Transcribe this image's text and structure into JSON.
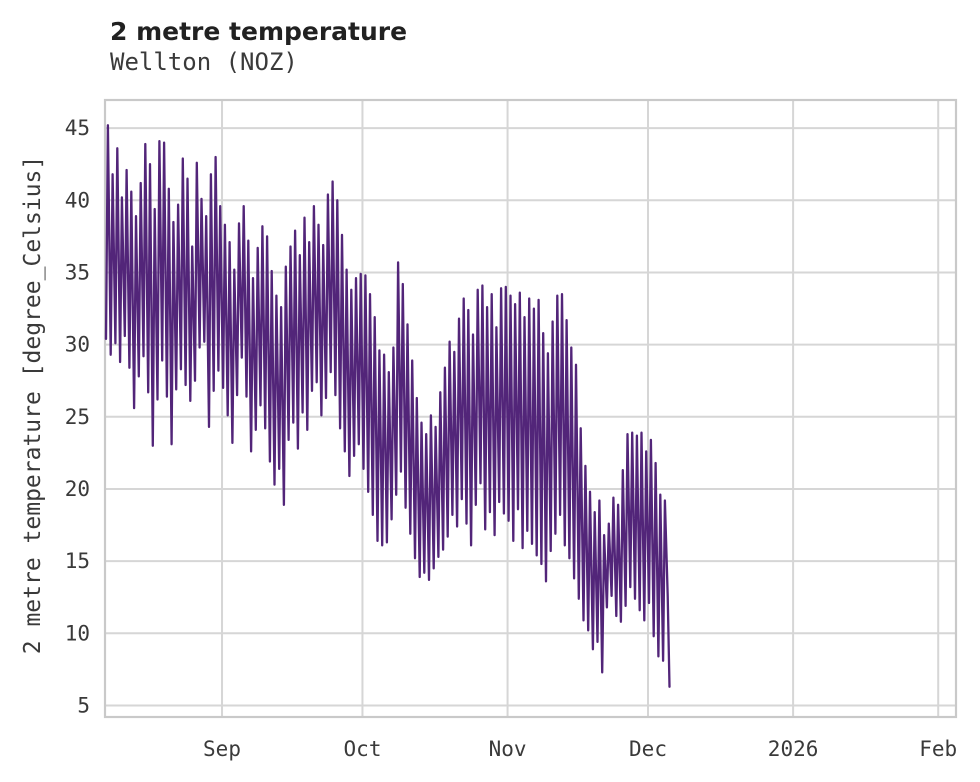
{
  "header": {
    "title": "2 metre temperature",
    "subtitle": "Wellton (NOZ)"
  },
  "colors": {
    "background": "#ffffff",
    "line": "#522579",
    "grid": "#d6d6d6",
    "spine": "#c9c9c9",
    "tick_text": "#3a3a3a",
    "title_text": "#212121"
  },
  "chart_data": {
    "type": "line",
    "title": "2 metre temperature",
    "subtitle": "Wellton (NOZ)",
    "xlabel": "",
    "ylabel": "2 metre temperature [degree_Celsius]",
    "series_name": "2 metre temperature",
    "legend_position": "none",
    "grid": true,
    "line_color": "#522579",
    "ylim": [
      4.2,
      46.95
    ],
    "y_ticks": [
      5,
      10,
      15,
      20,
      25,
      30,
      35,
      40,
      45
    ],
    "xlim_days": [
      0,
      181.8
    ],
    "x_ticks": [
      {
        "day": 25,
        "label": "Sep"
      },
      {
        "day": 55,
        "label": "Oct"
      },
      {
        "day": 86,
        "label": "Nov"
      },
      {
        "day": 116,
        "label": "Dec"
      },
      {
        "day": 147,
        "label": "2026"
      },
      {
        "day": 178,
        "label": "Feb"
      }
    ],
    "daily_max": [
      45.2,
      41.8,
      43.6,
      40.2,
      42.1,
      40.6,
      38.9,
      41.2,
      43.9,
      42.5,
      39.4,
      44.1,
      44.0,
      40.8,
      38.5,
      39.7,
      42.9,
      41.5,
      36.8,
      42.6,
      40.1,
      38.9,
      41.8,
      43.0,
      39.6,
      38.3,
      37.1,
      35.2,
      38.4,
      39.6,
      37.2,
      34.6,
      36.7,
      38.2,
      37.5,
      35.1,
      33.4,
      32.6,
      35.4,
      36.8,
      37.9,
      36.2,
      38.8,
      37.1,
      39.6,
      38.3,
      36.9,
      40.4,
      41.3,
      40.0,
      37.6,
      35.2,
      33.8,
      34.6,
      34.9,
      34.8,
      33.5,
      31.9,
      29.6,
      29.3,
      28.1,
      29.8,
      35.7,
      34.2,
      31.4,
      28.9,
      26.3,
      24.6,
      23.8,
      25.1,
      24.3,
      26.7,
      28.4,
      30.2,
      29.5,
      31.8,
      33.2,
      32.4,
      30.7,
      33.8,
      34.1,
      32.6,
      33.5,
      31.2,
      33.9,
      34.0,
      33.4,
      32.8,
      33.6,
      31.9,
      33.2,
      32.5,
      33.1,
      30.8,
      29.4,
      31.6,
      33.4,
      33.5,
      31.7,
      29.8,
      28.6,
      24.2,
      21.6,
      19.8,
      18.4,
      19.2,
      16.8,
      17.6,
      19.4,
      18.9,
      21.3,
      23.8,
      23.9,
      23.7,
      23.9,
      22.6,
      23.4,
      21.8,
      19.6,
      19.2,
      12.6
    ],
    "daily_min": [
      30.4,
      29.3,
      30.1,
      28.8,
      30.6,
      28.4,
      25.6,
      27.8,
      29.2,
      26.7,
      23.0,
      26.2,
      28.9,
      26.4,
      23.1,
      26.9,
      28.3,
      27.2,
      26.1,
      27.5,
      29.8,
      30.2,
      24.3,
      26.8,
      28.2,
      27.0,
      25.1,
      23.2,
      26.5,
      29.1,
      26.4,
      22.6,
      24.1,
      25.8,
      24.2,
      21.9,
      20.3,
      21.4,
      18.9,
      23.4,
      24.6,
      22.8,
      25.3,
      24.1,
      26.8,
      27.4,
      25.1,
      26.3,
      28.1,
      26.5,
      24.2,
      22.6,
      20.9,
      22.3,
      23.1,
      21.4,
      19.8,
      18.2,
      16.4,
      16.1,
      16.3,
      17.9,
      19.6,
      21.2,
      18.7,
      16.9,
      15.2,
      13.9,
      14.2,
      13.7,
      14.5,
      15.3,
      15.8,
      16.7,
      18.2,
      17.4,
      19.3,
      17.6,
      16.1,
      18.9,
      20.4,
      17.2,
      18.4,
      16.8,
      19.1,
      18.3,
      17.8,
      16.4,
      18.6,
      15.9,
      17.1,
      16.2,
      15.4,
      14.8,
      13.6,
      15.7,
      16.9,
      18.2,
      16.1,
      15.2,
      13.8,
      12.4,
      10.9,
      10.2,
      8.9,
      9.4,
      7.3,
      11.8,
      12.6,
      11.2,
      10.8,
      11.9,
      13.2,
      12.4,
      11.6,
      10.9,
      12.1,
      9.8,
      8.4,
      8.1,
      6.3
    ]
  }
}
